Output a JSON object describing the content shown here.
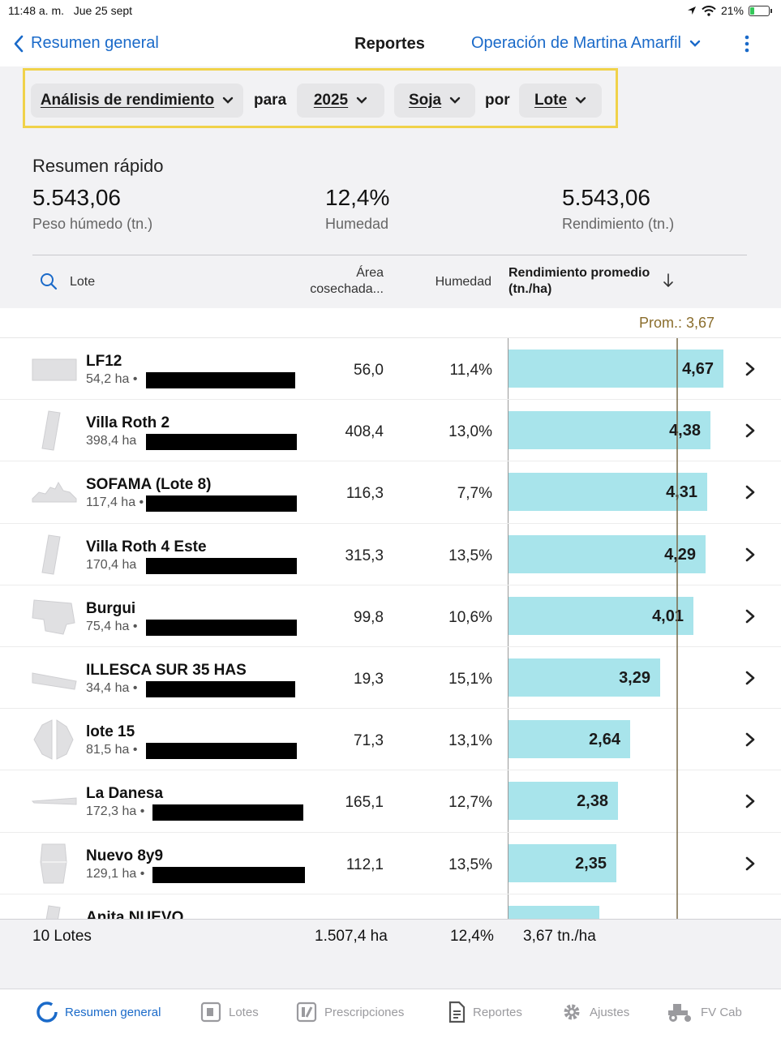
{
  "status": {
    "time": "11:48 a. m.",
    "date": "Jue 25 sept",
    "battery": "21%",
    "battery_level": 0.21
  },
  "nav": {
    "back_label": "Resumen general",
    "title": "Reportes",
    "operation": "Operación de Martina Amarfil"
  },
  "filters": {
    "report_type": "Análisis de rendimiento",
    "connector_for": "para",
    "year": "2025",
    "crop": "Soja",
    "connector_by": "por",
    "group": "Lote"
  },
  "summary": {
    "title": "Resumen rápido",
    "wet_weight": {
      "value": "5.543,06",
      "label": "Peso húmedo (tn.)"
    },
    "moisture": {
      "value": "12,4%",
      "label": "Humedad"
    },
    "yield": {
      "value": "5.543,06",
      "label": "Rendimiento (tn.)"
    }
  },
  "table": {
    "col_lote": "Lote",
    "col_area": "Área cosechada...",
    "col_moisture": "Humedad",
    "col_yield": "Rendimiento promedio (tn./ha)",
    "average_label": "Prom.: 3,67",
    "average_value": 3.67,
    "scale_max": 4.67,
    "rows": [
      {
        "name": "LF12",
        "sub": "54,2 ha •",
        "area": "56,0",
        "moisture": "11,4%",
        "yield": "4,67",
        "yield_value": 4.67,
        "shape": "rect"
      },
      {
        "name": "Villa Roth 2",
        "sub": "398,4 ha",
        "area": "408,4",
        "moisture": "13,0%",
        "yield": "4,38",
        "yield_value": 4.38,
        "shape": "tall"
      },
      {
        "name": "SOFAMA (Lote 8)",
        "sub": "117,4 ha •",
        "area": "116,3",
        "moisture": "7,7%",
        "yield": "4,31",
        "yield_value": 4.31,
        "shape": "jag"
      },
      {
        "name": "Villa Roth 4 Este",
        "sub": "170,4 ha",
        "area": "315,3",
        "moisture": "13,5%",
        "yield": "4,29",
        "yield_value": 4.29,
        "shape": "tall"
      },
      {
        "name": "Burgui",
        "sub": "75,4 ha •",
        "area": "99,8",
        "moisture": "10,6%",
        "yield": "4,01",
        "yield_value": 4.01,
        "shape": "poly"
      },
      {
        "name": "ILLESCA SUR 35 HAS",
        "sub": "34,4 ha •",
        "area": "19,3",
        "moisture": "15,1%",
        "yield": "3,29",
        "yield_value": 3.29,
        "shape": "strip"
      },
      {
        "name": "lote 15",
        "sub": "81,5 ha •",
        "area": "71,3",
        "moisture": "13,1%",
        "yield": "2,64",
        "yield_value": 2.64,
        "shape": "split"
      },
      {
        "name": "La Danesa",
        "sub": "172,3 ha •",
        "area": "165,1",
        "moisture": "12,7%",
        "yield": "2,38",
        "yield_value": 2.38,
        "shape": "thin"
      },
      {
        "name": "Nuevo 8y9",
        "sub": "129,1 ha •",
        "area": "112,1",
        "moisture": "13,5%",
        "yield": "2,35",
        "yield_value": 2.35,
        "shape": "block"
      },
      {
        "name": "Anita NUEVO",
        "sub": "",
        "area": "",
        "moisture": "",
        "yield": "",
        "yield_value": 1.98,
        "shape": "tall"
      }
    ]
  },
  "footer": {
    "count": "10 Lotes",
    "area": "1.507,4 ha",
    "moisture": "12,4%",
    "yield": "3,67 tn./ha"
  },
  "tabs": [
    {
      "label": "Resumen general",
      "icon": "summary-ring-icon",
      "active": true
    },
    {
      "label": "Lotes",
      "icon": "field-icon",
      "active": false
    },
    {
      "label": "Prescripciones",
      "icon": "prescription-icon",
      "active": false
    },
    {
      "label": "Reportes",
      "icon": "document-icon",
      "active": false
    },
    {
      "label": "Ajustes",
      "icon": "gear-icon",
      "active": false
    },
    {
      "label": "FV Cab",
      "icon": "tractor-icon",
      "active": false
    }
  ],
  "colors": {
    "accent": "#1a6ac9",
    "bar": "#a8e4eb",
    "highlight": "#f0d24a",
    "average": "#8a6d2c"
  }
}
